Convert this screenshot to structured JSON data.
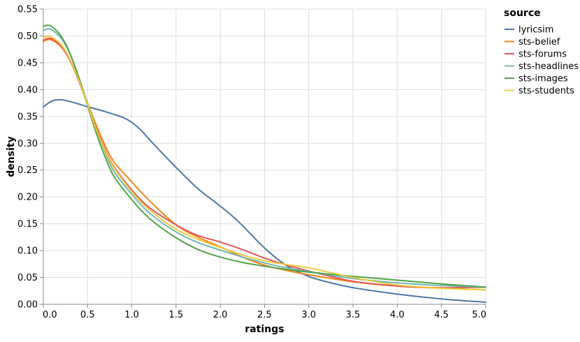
{
  "chart_data": {
    "type": "line",
    "xlabel": "ratings",
    "ylabel": "density",
    "xlim": [
      0,
      5
    ],
    "ylim": [
      0,
      0.55
    ],
    "x_ticks": [
      "0.0",
      "0.5",
      "1.0",
      "1.5",
      "2.0",
      "2.5",
      "3.0",
      "3.5",
      "4.0",
      "4.5",
      "5.0"
    ],
    "y_ticks": [
      "0.00",
      "0.05",
      "0.10",
      "0.15",
      "0.20",
      "0.25",
      "0.30",
      "0.35",
      "0.40",
      "0.45",
      "0.50",
      "0.55"
    ],
    "grid": true,
    "legend": {
      "title": "source",
      "placement": "right"
    },
    "series": [
      {
        "name": "lyricsim",
        "color": "#4c78a8",
        "x": [
          0,
          0.1,
          0.2,
          0.3,
          0.5,
          0.7,
          0.9,
          1.0,
          1.1,
          1.25,
          1.5,
          1.75,
          2.0,
          2.2,
          2.5,
          2.75,
          3.0,
          3.25,
          3.5,
          4.0,
          4.5,
          5.0
        ],
        "y": [
          0.368,
          0.379,
          0.381,
          0.378,
          0.368,
          0.359,
          0.348,
          0.339,
          0.325,
          0.298,
          0.255,
          0.215,
          0.183,
          0.155,
          0.105,
          0.072,
          0.052,
          0.04,
          0.031,
          0.019,
          0.01,
          0.004
        ]
      },
      {
        "name": "sts-belief",
        "color": "#f58518",
        "x": [
          0,
          0.05,
          0.1,
          0.2,
          0.3,
          0.4,
          0.5,
          0.6,
          0.7,
          0.8,
          1.0,
          1.2,
          1.5,
          1.75,
          2.0,
          2.25,
          2.5,
          2.75,
          3.0,
          3.5,
          4.0,
          4.5,
          5.0
        ],
        "y": [
          0.49,
          0.493,
          0.492,
          0.48,
          0.455,
          0.418,
          0.375,
          0.333,
          0.295,
          0.265,
          0.228,
          0.193,
          0.148,
          0.125,
          0.107,
          0.088,
          0.073,
          0.063,
          0.055,
          0.042,
          0.034,
          0.03,
          0.027
        ]
      },
      {
        "name": "sts-forums",
        "color": "#e45756",
        "x": [
          0,
          0.05,
          0.1,
          0.2,
          0.3,
          0.4,
          0.5,
          0.6,
          0.7,
          0.8,
          1.0,
          1.2,
          1.5,
          1.75,
          2.0,
          2.25,
          2.5,
          2.75,
          3.0,
          3.5,
          4.0,
          4.5,
          5.0
        ],
        "y": [
          0.492,
          0.495,
          0.494,
          0.481,
          0.455,
          0.416,
          0.372,
          0.327,
          0.288,
          0.256,
          0.213,
          0.18,
          0.148,
          0.128,
          0.116,
          0.102,
          0.086,
          0.073,
          0.062,
          0.043,
          0.034,
          0.031,
          0.032
        ]
      },
      {
        "name": "sts-headlines",
        "color": "#72b7b2",
        "x": [
          0,
          0.05,
          0.1,
          0.2,
          0.3,
          0.4,
          0.5,
          0.6,
          0.7,
          0.8,
          1.0,
          1.2,
          1.5,
          1.75,
          2.0,
          2.25,
          2.5,
          2.75,
          3.0,
          3.5,
          4.0,
          4.5,
          5.0
        ],
        "y": [
          0.51,
          0.513,
          0.511,
          0.496,
          0.467,
          0.424,
          0.374,
          0.325,
          0.283,
          0.247,
          0.205,
          0.17,
          0.135,
          0.115,
          0.101,
          0.088,
          0.077,
          0.068,
          0.061,
          0.048,
          0.04,
          0.035,
          0.032
        ]
      },
      {
        "name": "sts-images",
        "color": "#54a24b",
        "x": [
          0,
          0.05,
          0.1,
          0.2,
          0.3,
          0.4,
          0.5,
          0.6,
          0.7,
          0.8,
          1.0,
          1.2,
          1.5,
          1.75,
          2.0,
          2.25,
          2.5,
          2.75,
          3.0,
          3.5,
          4.0,
          4.5,
          5.0
        ],
        "y": [
          0.518,
          0.52,
          0.517,
          0.5,
          0.468,
          0.422,
          0.37,
          0.318,
          0.274,
          0.238,
          0.195,
          0.16,
          0.124,
          0.102,
          0.088,
          0.078,
          0.071,
          0.065,
          0.06,
          0.052,
          0.045,
          0.038,
          0.032
        ]
      },
      {
        "name": "sts-students",
        "color": "#eeca3b",
        "x": [
          0,
          0.05,
          0.1,
          0.2,
          0.3,
          0.4,
          0.5,
          0.6,
          0.7,
          0.8,
          1.0,
          1.2,
          1.5,
          1.75,
          2.0,
          2.25,
          2.5,
          2.75,
          3.0,
          3.5,
          4.0,
          4.5,
          5.0
        ],
        "y": [
          0.497,
          0.499,
          0.497,
          0.484,
          0.457,
          0.418,
          0.372,
          0.325,
          0.286,
          0.254,
          0.21,
          0.176,
          0.14,
          0.121,
          0.106,
          0.092,
          0.081,
          0.074,
          0.068,
          0.05,
          0.036,
          0.03,
          0.027
        ]
      }
    ]
  }
}
